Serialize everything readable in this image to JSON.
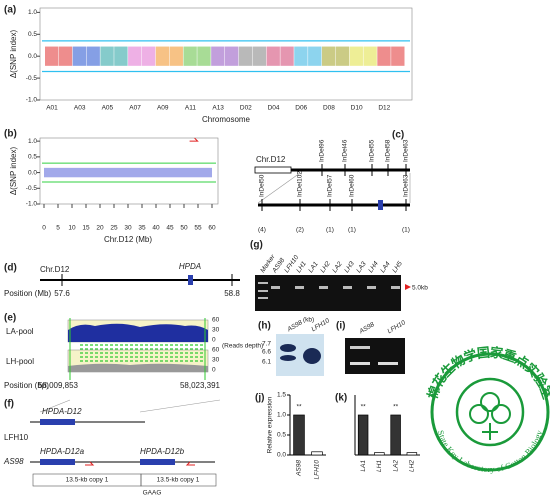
{
  "panels": {
    "a": {
      "label": "(a)",
      "y_label": "Δ(SNP index)",
      "x_label": "Chromosome",
      "categories": [
        "A01",
        "A03",
        "A05",
        "A07",
        "A09",
        "A11",
        "A13",
        "D02",
        "D04",
        "D06",
        "D08",
        "D10",
        "D12"
      ],
      "ylim": [
        -1,
        1.1
      ],
      "yticks": [
        {
          "value": -1,
          "label": "-1.0"
        },
        {
          "value": -0.5,
          "label": "-0.5"
        },
        {
          "value": 0,
          "label": "0.0"
        },
        {
          "value": 0.5,
          "label": "0.5"
        },
        {
          "value": 1,
          "label": "1.0"
        }
      ]
    },
    "b": {
      "label": "(b)",
      "y_label": "Δ(SNP index)",
      "x_label": "Chr.D12 (Mb)",
      "xlim": [
        0,
        60
      ],
      "xticks": [
        0,
        5,
        10,
        15,
        20,
        25,
        30,
        35,
        40,
        45,
        50,
        55,
        60
      ],
      "ylim": [
        -1,
        1.1
      ],
      "yticks": [
        {
          "value": -1,
          "label": "-1.0"
        },
        {
          "value": -0.5,
          "label": "-0.5"
        },
        {
          "value": 0,
          "label": "0.0"
        },
        {
          "value": 0.5,
          "label": "0.5"
        },
        {
          "value": 1,
          "label": "1.0"
        }
      ]
    },
    "c": {
      "label": "(c)",
      "chromosome": "Chr.D12",
      "top_markers": [
        "InDel96",
        "InDel46",
        "InDel55",
        "InDel58",
        "InDel63"
      ],
      "bottom_markers": [
        "InDel50",
        "InDel102",
        "InDel57",
        "InDel60",
        "InDel63"
      ],
      "counts": [
        "(4)",
        "(2)",
        "(1)",
        "(1)",
        "(1)"
      ]
    },
    "d": {
      "label": "(d)",
      "chromosome": "Chr.D12",
      "gene": "HPDA",
      "position_label": "Position (Mb)",
      "start": "57.6",
      "end": "58.8"
    },
    "e": {
      "label": "(e)",
      "tracks": [
        "LA-pool",
        "LH-pool"
      ],
      "depth_ticks": [
        "60",
        "30",
        "0"
      ],
      "depth_label": "(Reads depth)",
      "position_label": "Position (bp)",
      "start": "58,009,853",
      "end": "58,023,391"
    },
    "f": {
      "label": "(f)",
      "line1": "LFH10",
      "gene1": "HPDA-D12",
      "line2": "AS98",
      "gene2a": "HPDA-D12a",
      "gene2b": "HPDA-D12b",
      "copy_a": "13.5-kb copy 1",
      "copy_b": "13.5-kb copy 1",
      "motif": "GAAG"
    },
    "g": {
      "label": "(g)",
      "lanes": [
        "Marker",
        "AS98",
        "LFH10",
        "LH1",
        "LA1",
        "LH2",
        "LA2",
        "LH3",
        "LA3",
        "LH4",
        "LA4",
        "LH5"
      ],
      "size": "5.0kb"
    },
    "h": {
      "label": "(h)",
      "lanes": [
        "AS98",
        "LFH10"
      ],
      "unit": "(kb)",
      "sizes": [
        "7.7",
        "6.6",
        "6.1"
      ]
    },
    "i": {
      "label": "(i)",
      "lanes": [
        "AS98",
        "LFH10"
      ]
    },
    "j": {
      "label": "(j)",
      "y_label": "Relative expression",
      "categories": [
        "AS98",
        "LFH10"
      ],
      "values": [
        1.0,
        0.08
      ],
      "sig": [
        "**"
      ],
      "ylim": [
        0,
        1.5
      ],
      "yticks": [
        {
          "value": 0,
          "label": "0.0"
        },
        {
          "value": 0.5,
          "label": "0.5"
        },
        {
          "value": 1,
          "label": "1.0"
        },
        {
          "value": 1.5,
          "label": "1.5"
        }
      ]
    },
    "k": {
      "label": "(k)",
      "categories": [
        "LA1",
        "LH1",
        "LA2",
        "LH2"
      ],
      "values": [
        1.0,
        0.06,
        1.0,
        0.06
      ],
      "sig": [
        "**",
        "**"
      ],
      "ylim": [
        0,
        1.5
      ]
    }
  },
  "logo": {
    "name_cn": "棉花生物学国家重点实验室",
    "name_en": "State Key Laboratory of Cotton Biology"
  }
}
